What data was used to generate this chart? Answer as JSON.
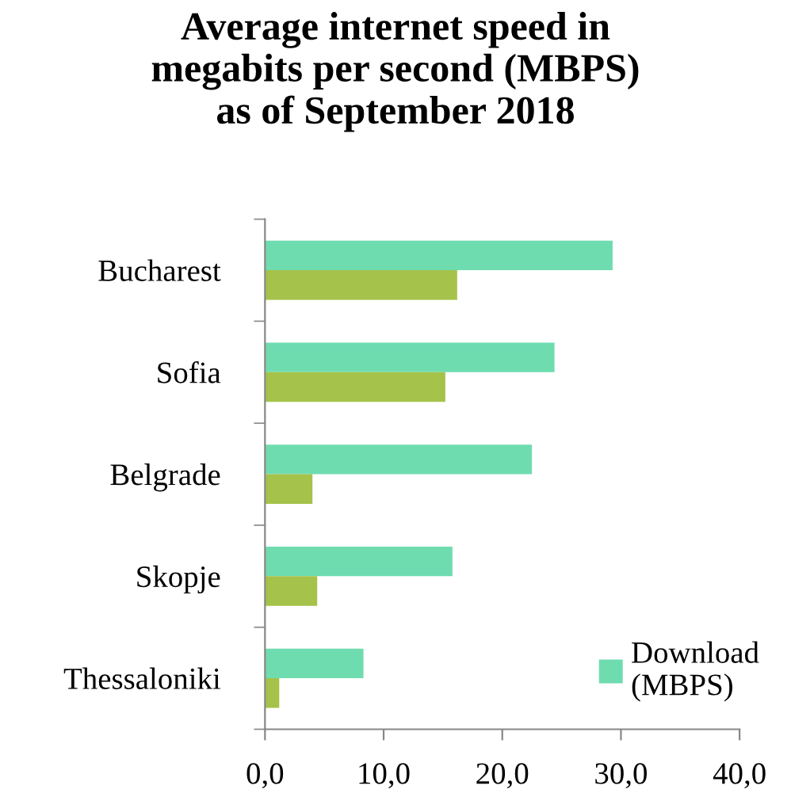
{
  "chart_data": {
    "type": "bar",
    "orientation": "horizontal",
    "title": "Average internet speed in\nmegabits per second (MBPS)\nas of September 2018",
    "categories": [
      "Bucharest",
      "Sofia",
      "Belgrade",
      "Skopje",
      "Thessaloniki"
    ],
    "series": [
      {
        "name": "Download\n(MBPS)",
        "color": "#6fdcb0",
        "values": [
          29.3,
          24.4,
          22.5,
          15.8,
          8.3
        ]
      },
      {
        "color": "#a5c24a",
        "values": [
          16.2,
          15.2,
          4.0,
          4.4,
          1.2
        ]
      }
    ],
    "xlim": [
      0,
      40
    ],
    "xticks": [
      {
        "value": 0,
        "label": "0,0"
      },
      {
        "value": 10,
        "label": "10,0"
      },
      {
        "value": 20,
        "label": "20,0"
      },
      {
        "value": 30,
        "label": "30,0"
      },
      {
        "value": 40,
        "label": "40,0"
      }
    ],
    "grid": false,
    "legend": "bottom right"
  }
}
